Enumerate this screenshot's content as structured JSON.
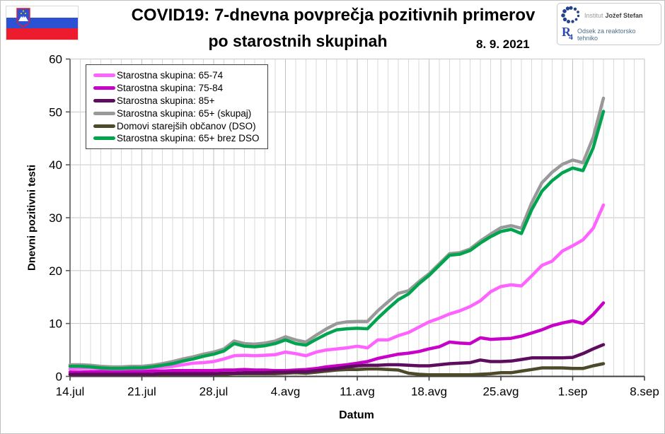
{
  "header": {
    "title_line1": "COVID19: 7-dnevna povprečja pozitivnih primerov",
    "title_line2": "po starostnih skupinah",
    "date": "8. 9. 2021"
  },
  "branding": {
    "institute_light": "Institut",
    "institute_bold": "Jožef Stefan",
    "r4_main": "R",
    "r4_sub": "4",
    "department": "Odsek za reaktorsko tehniko"
  },
  "axes": {
    "y_label": "Dnevni pozitivni testi",
    "x_label": "Datum"
  },
  "chart_data": {
    "type": "line",
    "title": "COVID19: 7-dnevna povprečja pozitivnih primerov po starostnih skupinah",
    "date_annotation": "8. 9. 2021",
    "xlabel": "Datum",
    "ylabel": "Dnevni pozitivni testi",
    "ylim": [
      0,
      60
    ],
    "y_ticks": [
      0,
      10,
      20,
      30,
      40,
      50,
      60
    ],
    "x_tick_labels": [
      "14.jul",
      "21.jul",
      "28.jul",
      "4.avg",
      "11.avg",
      "18.avg",
      "25.avg",
      "1.sep",
      "8.sep"
    ],
    "x_tick_day_indices": [
      0,
      7,
      14,
      21,
      28,
      35,
      42,
      49,
      56
    ],
    "axis_total_days": 56,
    "data_start": "14.jul",
    "data_end": "4.sep",
    "grid": "daily vertical gridlines, horizontal every 10",
    "legend_position": "top-left inside plot",
    "draw_order": [
      3,
      0,
      1,
      4,
      2,
      5
    ],
    "series": [
      {
        "name": "Starostna skupina: 65-74",
        "color": "#ff63ff",
        "values": [
          1.4,
          1.5,
          1.6,
          1.5,
          1.3,
          1.2,
          1.3,
          1.3,
          1.5,
          1.7,
          1.9,
          2.2,
          2.5,
          2.6,
          2.8,
          3.3,
          3.9,
          4.0,
          3.9,
          4.0,
          4.1,
          4.6,
          4.3,
          3.9,
          4.6,
          5.0,
          5.2,
          5.4,
          5.7,
          5.4,
          6.9,
          6.9,
          7.7,
          8.3,
          9.3,
          10.3,
          11.0,
          11.8,
          12.4,
          13.2,
          14.3,
          16.0,
          17.0,
          17.3,
          17.1,
          19.0,
          21.0,
          21.8,
          23.7,
          24.7,
          25.8,
          28.0,
          32.4
        ]
      },
      {
        "name": "Starostna skupina: 75-84",
        "color": "#c800c8",
        "values": [
          0.8,
          0.8,
          0.9,
          0.9,
          0.8,
          0.8,
          0.9,
          0.9,
          1.0,
          1.0,
          1.1,
          1.1,
          1.1,
          1.1,
          1.1,
          1.2,
          1.2,
          1.3,
          1.2,
          1.2,
          1.1,
          1.1,
          1.2,
          1.3,
          1.5,
          1.8,
          2.0,
          2.2,
          2.5,
          2.8,
          3.4,
          3.8,
          4.2,
          4.4,
          4.7,
          5.2,
          5.6,
          6.5,
          6.3,
          6.2,
          7.3,
          7.0,
          7.1,
          7.2,
          7.6,
          8.2,
          8.8,
          9.6,
          10.1,
          10.5,
          10.0,
          11.7,
          13.9
        ]
      },
      {
        "name": "Starostna skupina: 85+",
        "color": "#5e0d5e",
        "values": [
          0.4,
          0.4,
          0.4,
          0.4,
          0.4,
          0.4,
          0.4,
          0.4,
          0.4,
          0.5,
          0.5,
          0.5,
          0.5,
          0.5,
          0.5,
          0.6,
          0.6,
          0.7,
          0.7,
          0.7,
          0.8,
          0.8,
          0.9,
          0.9,
          1.1,
          1.3,
          1.5,
          1.8,
          2.0,
          2.1,
          2.1,
          2.2,
          2.2,
          2.1,
          2.0,
          2.0,
          2.2,
          2.4,
          2.5,
          2.6,
          3.1,
          2.8,
          2.8,
          2.9,
          3.2,
          3.5,
          3.5,
          3.5,
          3.5,
          3.6,
          4.3,
          5.2,
          6.0
        ]
      },
      {
        "name": "Starostna skupina: 65+ (skupaj)",
        "color": "#999999",
        "values": [
          2.2,
          2.2,
          2.1,
          1.9,
          1.8,
          1.8,
          1.9,
          1.9,
          2.1,
          2.4,
          2.8,
          3.3,
          3.7,
          4.2,
          4.6,
          5.2,
          6.7,
          6.2,
          6.1,
          6.3,
          6.7,
          7.5,
          6.9,
          6.5,
          7.8,
          9.0,
          10.0,
          10.3,
          10.4,
          10.4,
          12.4,
          14.1,
          15.7,
          16.2,
          17.9,
          19.4,
          21.3,
          23.2,
          23.4,
          24.1,
          25.6,
          26.9,
          28.1,
          28.5,
          28.0,
          32.8,
          36.6,
          38.6,
          40.1,
          40.9,
          40.4,
          45.2,
          52.6
        ]
      },
      {
        "name": "Domovi starejših občanov (DSO)",
        "color": "#4d4a2a",
        "values": [
          0.3,
          0.3,
          0.3,
          0.3,
          0.3,
          0.3,
          0.3,
          0.3,
          0.3,
          0.3,
          0.4,
          0.4,
          0.4,
          0.4,
          0.4,
          0.4,
          0.5,
          0.5,
          0.5,
          0.5,
          0.5,
          0.6,
          0.7,
          0.6,
          0.8,
          1.0,
          1.2,
          1.3,
          1.3,
          1.4,
          1.4,
          1.3,
          1.2,
          0.6,
          0.4,
          0.3,
          0.3,
          0.3,
          0.3,
          0.3,
          0.4,
          0.5,
          0.7,
          0.7,
          1.0,
          1.3,
          1.6,
          1.6,
          1.6,
          1.5,
          1.5,
          2.0,
          2.4
        ]
      },
      {
        "name": "Starostna skupina: 65+ brez DSO",
        "color": "#00a44e",
        "values": [
          1.9,
          1.9,
          1.8,
          1.6,
          1.5,
          1.5,
          1.6,
          1.6,
          1.8,
          2.1,
          2.4,
          2.9,
          3.3,
          3.8,
          4.2,
          4.8,
          6.2,
          5.7,
          5.6,
          5.8,
          6.2,
          6.9,
          6.2,
          5.9,
          7.0,
          8.0,
          8.8,
          9.0,
          9.1,
          9.0,
          11.0,
          12.8,
          14.5,
          15.6,
          17.5,
          19.1,
          21.0,
          22.9,
          23.1,
          23.8,
          25.2,
          26.4,
          27.4,
          27.8,
          27.0,
          31.5,
          35.0,
          37.0,
          38.5,
          39.4,
          38.9,
          43.2,
          50.1
        ]
      }
    ]
  }
}
